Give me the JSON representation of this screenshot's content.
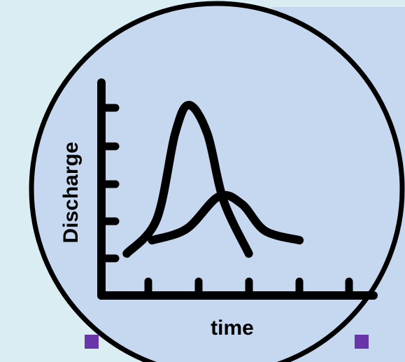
{
  "chart_data": {
    "type": "line",
    "title": "",
    "xlabel": "time",
    "ylabel": "Discharge",
    "x_tick_count": 5,
    "y_tick_count": 5,
    "x_tick_labels": [],
    "y_tick_labels": [],
    "xlim": [
      0,
      12
    ],
    "ylim": [
      0,
      10
    ],
    "grid": false,
    "legend": "none",
    "series": [
      {
        "points": [
          [
            1.1,
            2.2
          ],
          [
            2.4,
            4.0
          ],
          [
            3.2,
            8.5
          ],
          [
            3.8,
            10.0
          ],
          [
            4.6,
            8.5
          ],
          [
            5.3,
            5.0
          ],
          [
            6.4,
            2.2
          ]
        ]
      },
      {
        "points": [
          [
            2.2,
            2.9
          ],
          [
            3.7,
            3.5
          ],
          [
            5.1,
            5.2
          ],
          [
            6.1,
            4.8
          ],
          [
            7.1,
            3.4
          ],
          [
            8.6,
            2.9
          ]
        ]
      }
    ]
  },
  "colors": {
    "background": "#d9edf3",
    "circle_fill": "#c6d8f0",
    "ink": "#000000",
    "handle": "#6a35a8"
  }
}
